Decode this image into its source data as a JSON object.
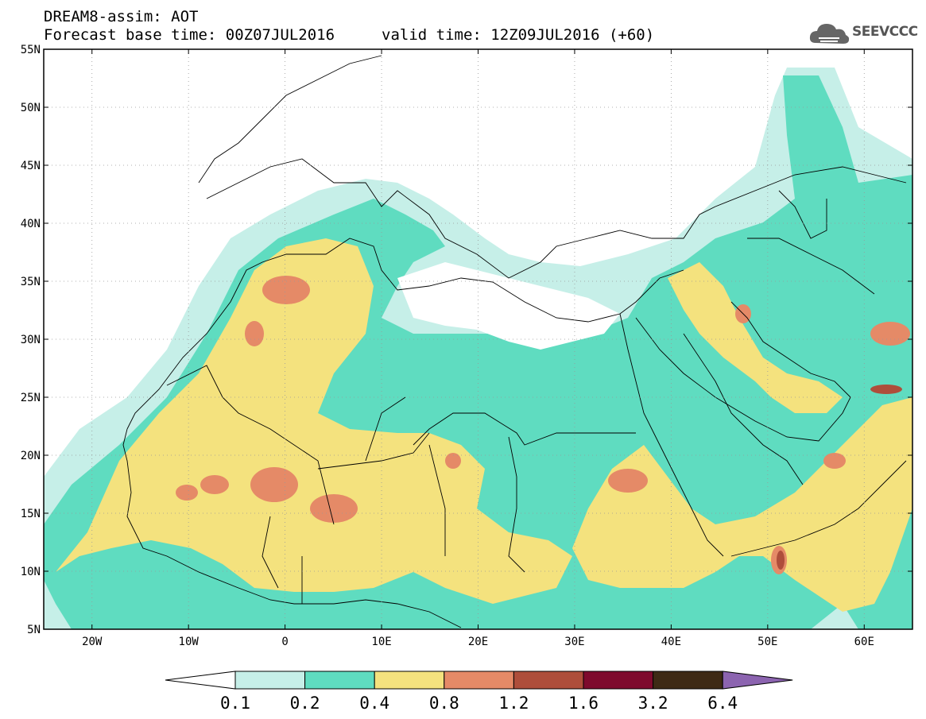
{
  "title": {
    "line1": "DREAM8-assim: AOT",
    "line2": "Forecast base time: 00Z07JUL2016",
    "line3": "valid time: 12Z09JUL2016 (+60)"
  },
  "logo": {
    "text": "SEEVCCC",
    "icon": "cloud-icon"
  },
  "map": {
    "lon_range": [
      -25,
      65
    ],
    "lat_range": [
      5,
      55
    ],
    "lat_ticks": [
      "55N",
      "50N",
      "45N",
      "40N",
      "35N",
      "30N",
      "25N",
      "20N",
      "15N",
      "10N",
      "5N"
    ],
    "lon_ticks": [
      "20W",
      "10W",
      "0",
      "10E",
      "20E",
      "30E",
      "40E",
      "50E",
      "60E"
    ],
    "variable": "Aerosol optical thickness",
    "colors": {
      "c01_02": "#c6efe8",
      "c02_04": "#5fdcc0",
      "c04_08": "#f4e27e",
      "c08_12": "#e58a67",
      "c12_16": "#ae4e3b",
      "c16_32": "#7e0a2d",
      "c32_64": "#3e2a15",
      "c64": "#8c64b0"
    }
  },
  "colorbar": {
    "labels": [
      "0.1",
      "0.2",
      "0.4",
      "0.8",
      "1.2",
      "1.6",
      "3.2",
      "6.4"
    ]
  }
}
